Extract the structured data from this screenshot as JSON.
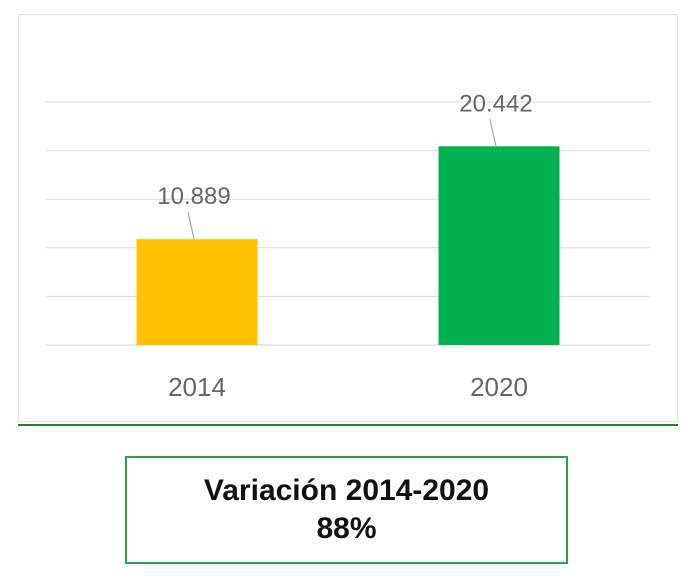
{
  "chart_data": {
    "type": "bar",
    "categories": [
      "2014",
      "2020"
    ],
    "values": [
      10889,
      20442
    ],
    "value_labels": [
      "10.889",
      "20.442"
    ],
    "title": "",
    "xlabel": "",
    "ylabel": "",
    "ylim": [
      0,
      25000
    ],
    "grid": true,
    "colors": [
      "#ffc000",
      "#00b050"
    ]
  },
  "summary": {
    "title": "Variación 2014-2020",
    "value": "88%"
  }
}
